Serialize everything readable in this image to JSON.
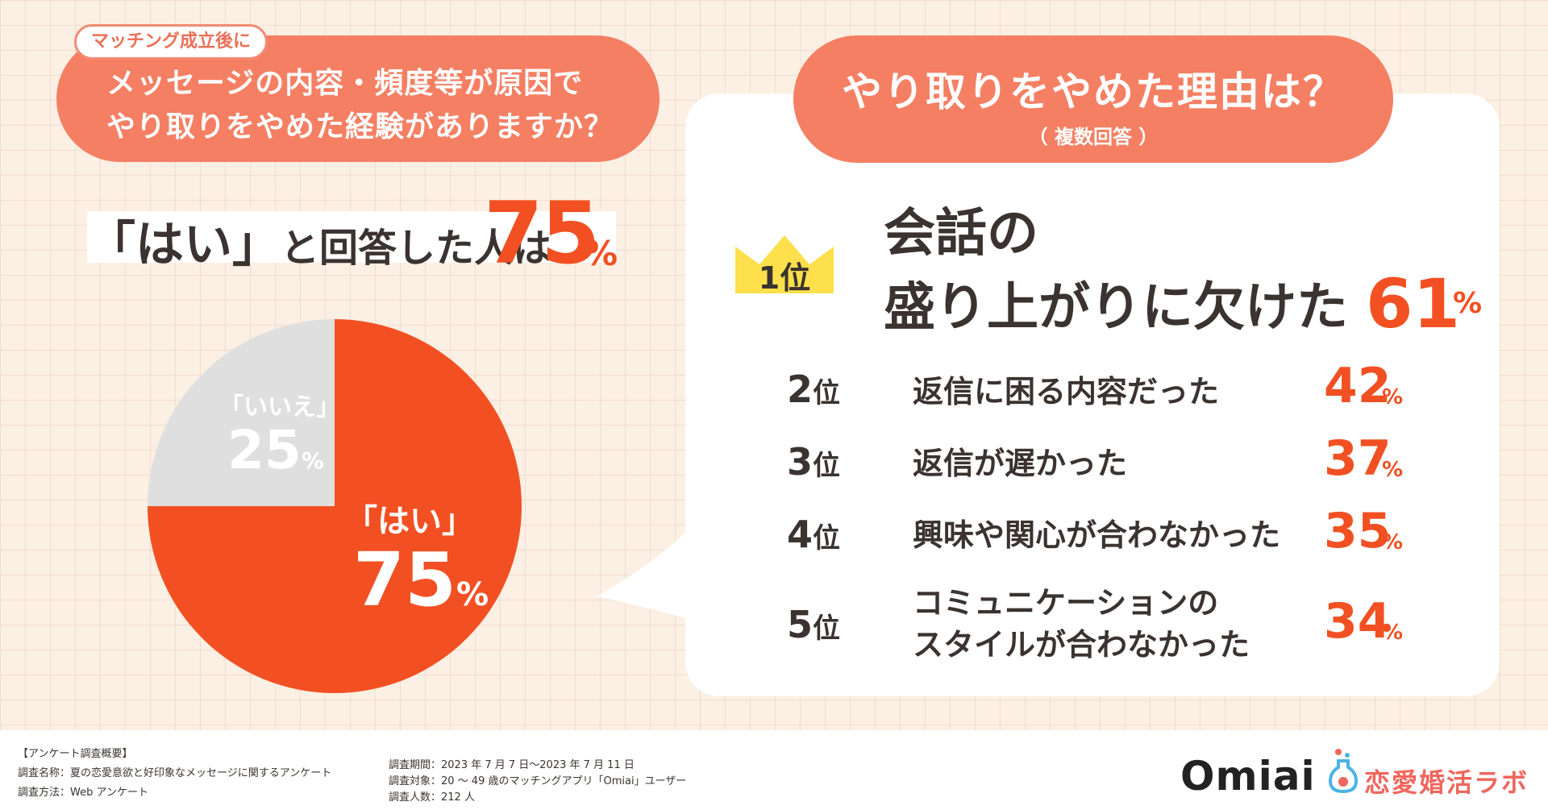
{
  "left": {
    "tag": "マッチング成立後に",
    "question_line1": "メッセージの内容・頻度等が原因で",
    "question_line2": "やり取りをやめた経験がありますか？",
    "yes_prefix": "「はい」",
    "yes_suffix": "と回答した人は",
    "yes_value": "75",
    "unit": "%"
  },
  "right": {
    "title": "やり取りをやめた理由は？",
    "subtitle": "（ 複数回答 ）",
    "top": {
      "rank": "1位",
      "label_line1": "会話の",
      "label_line2": "盛り上がりに欠けた",
      "value": "61",
      "unit": "%"
    },
    "rows": [
      {
        "rank_num": "2",
        "rank_unit": "位",
        "line1": "返信に困る内容だった",
        "line2": "",
        "value": "42",
        "unit": "%"
      },
      {
        "rank_num": "3",
        "rank_unit": "位",
        "line1": "返信が遅かった",
        "line2": "",
        "value": "37",
        "unit": "%"
      },
      {
        "rank_num": "4",
        "rank_unit": "位",
        "line1": "興味や関心が合わなかった",
        "line2": "",
        "value": "35",
        "unit": "%"
      },
      {
        "rank_num": "5",
        "rank_unit": "位",
        "line1": "コミュニケーションの",
        "line2": "スタイルが合わなかった",
        "value": "34",
        "unit": "%"
      }
    ]
  },
  "chart_data": [
    {
      "type": "pie",
      "slices": [
        {
          "label": "「はい」",
          "value": 75,
          "color": "#f25022"
        },
        {
          "label": "「いいえ」",
          "value": 25,
          "color": "#e0dfdf"
        }
      ],
      "unit": "%"
    },
    {
      "type": "bar",
      "title": "やり取りをやめた理由は？",
      "subtitle": "（ 複数回答 ）",
      "categories": [
        "会話の盛り上がりに欠けた",
        "返信に困る内容だった",
        "返信が遅かった",
        "興味や関心が合わなかった",
        "コミュニケーションのスタイルが合わなかった"
      ],
      "values": [
        61,
        42,
        37,
        35,
        34
      ],
      "unit": "%"
    }
  ],
  "footer": {
    "col1": [
      "【アンケート調査概要】",
      "調査名称：夏の恋愛意欲と好印象なメッセージに関するアンケート",
      "調査方法：Web アンケート"
    ],
    "col2": [
      "調査期間：2023 年 7 月 7 日〜2023 年 7 月 11 日",
      "調査対象：20 〜 49 歳のマッチングアプリ「Omiai」ユーザー",
      "調査人数：212 人"
    ],
    "logo_omiai": "Omiai",
    "logo_lab": "恋愛婚活ラボ"
  },
  "colors": {
    "accent": "#f25022",
    "pill": "#f57f63",
    "crown": "#fde04b",
    "background": "#fcefe3"
  }
}
